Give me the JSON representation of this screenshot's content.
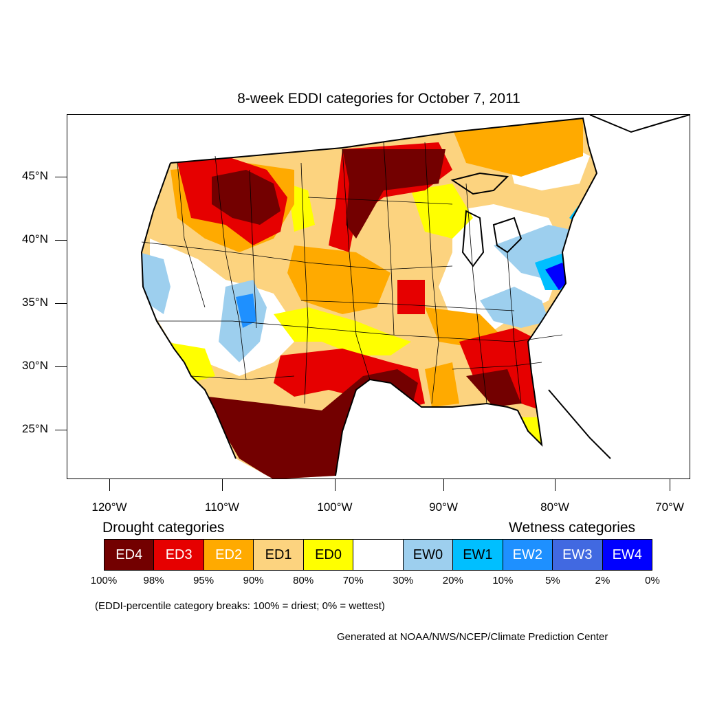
{
  "title": "8-week EDDI categories for October 7, 2011",
  "lat_labels": [
    "45°N",
    "40°N",
    "35°N",
    "30°N",
    "25°N"
  ],
  "lon_labels": [
    "120°W",
    "110°W",
    "100°W",
    "90°W",
    "80°W",
    "70°W"
  ],
  "legend": {
    "drought_heading": "Drought categories",
    "wetness_heading": "Wetness categories",
    "categories": [
      {
        "label": "ED4",
        "color": "#730000",
        "text_color": "#ffffff"
      },
      {
        "label": "ED3",
        "color": "#e60000",
        "text_color": "#ffffff"
      },
      {
        "label": "ED2",
        "color": "#ffaa00",
        "text_color": "#ffffff"
      },
      {
        "label": "ED1",
        "color": "#fcd37f",
        "text_color": "#000000"
      },
      {
        "label": "ED0",
        "color": "#ffff00",
        "text_color": "#000000"
      },
      {
        "label": "",
        "color": "#ffffff",
        "text_color": "#000000"
      },
      {
        "label": "EW0",
        "color": "#9dcfee",
        "text_color": "#000000"
      },
      {
        "label": "EW1",
        "color": "#00bfff",
        "text_color": "#000000"
      },
      {
        "label": "EW2",
        "color": "#1e90ff",
        "text_color": "#ffffff"
      },
      {
        "label": "EW3",
        "color": "#4169e1",
        "text_color": "#ffffff"
      },
      {
        "label": "EW4",
        "color": "#0000ff",
        "text_color": "#ffffff"
      }
    ],
    "breaks": [
      "100%",
      "98%",
      "95%",
      "90%",
      "80%",
      "70%",
      "30%",
      "20%",
      "10%",
      "5%",
      "2%",
      "0%"
    ]
  },
  "note": "(EDDI-percentile category breaks: 100% = driest; 0% = wettest)",
  "credit": "Generated at NOAA/NWS/NCEP/Climate Prediction Center"
}
